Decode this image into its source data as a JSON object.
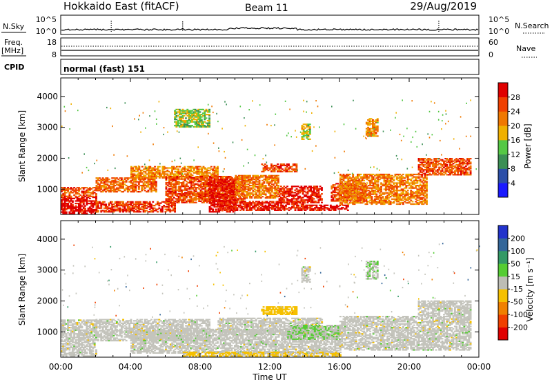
{
  "header": {
    "title": "Hokkaido East (fitACF)",
    "beam": "Beam 11",
    "date": "29/Aug/2019"
  },
  "strip": {
    "nsky_label": "N.Sky",
    "nsky_ticks": [
      "10^5",
      "10^0"
    ],
    "nsky_right_ticks": [
      "10^5",
      "10^0"
    ],
    "nsearch_label": "N.Search",
    "freq_label": "Freq.",
    "freq_unit": "[MHz]",
    "freq_ticks": [
      "18",
      "8"
    ],
    "nave_ticks": [
      "60",
      "0"
    ],
    "nave_label": "Nave",
    "cpid_label": "CPID",
    "cpid_value": "normal (fast) 151"
  },
  "colors": {
    "power_scale": [
      "#1a1aff",
      "#2c4fa8",
      "#3b8f55",
      "#55c845",
      "#f0b000",
      "#f07800",
      "#f04000",
      "#e00000"
    ],
    "velocity_scale": [
      "#2233cc",
      "#336699",
      "#339966",
      "#55cc33",
      "#bdbdb5",
      "#f5c000",
      "#f08000",
      "#f04000",
      "#e00000"
    ],
    "ground_gray": "#c4c4bc"
  },
  "chart_data": [
    {
      "type": "heatmap",
      "title": "",
      "xlabel": "",
      "ylabel": "Slant Range [km]",
      "xlim": [
        "00:00",
        "24:00"
      ],
      "ylim": [
        180,
        4600
      ],
      "y_ticks": [
        1000,
        2000,
        3000,
        4000
      ],
      "colorbar": {
        "label": "Power [dB]",
        "ticks": [
          "4",
          "8",
          "12",
          "16",
          "20",
          "24",
          "28"
        ],
        "range": [
          0,
          30
        ]
      },
      "regions": [
        {
          "t0": 0.0,
          "t1": 2.0,
          "r0": 200,
          "r1": 750,
          "value": 29
        },
        {
          "t0": 0.0,
          "t1": 2.0,
          "r0": 750,
          "r1": 1050,
          "value": 23
        },
        {
          "t0": 2.0,
          "t1": 6.5,
          "r0": 250,
          "r1": 600,
          "value": 25
        },
        {
          "t0": 2.0,
          "t1": 5.5,
          "r0": 900,
          "r1": 1350,
          "value": 22
        },
        {
          "t0": 4.0,
          "t1": 9.0,
          "r0": 1350,
          "r1": 1750,
          "value": 20
        },
        {
          "t0": 6.0,
          "t1": 10.5,
          "r0": 550,
          "r1": 1400,
          "value": 24
        },
        {
          "t0": 8.5,
          "t1": 10.0,
          "r0": 250,
          "r1": 1300,
          "value": 28
        },
        {
          "t0": 9.0,
          "t1": 14.0,
          "r0": 300,
          "r1": 600,
          "value": 27
        },
        {
          "t0": 10.0,
          "t1": 12.5,
          "r0": 700,
          "r1": 1450,
          "value": 21
        },
        {
          "t0": 11.5,
          "t1": 13.5,
          "r0": 1550,
          "r1": 1800,
          "value": 24
        },
        {
          "t0": 12.5,
          "t1": 15.0,
          "r0": 550,
          "r1": 1100,
          "value": 27
        },
        {
          "t0": 14.0,
          "t1": 16.5,
          "r0": 300,
          "r1": 500,
          "value": 28
        },
        {
          "t0": 15.5,
          "t1": 17.5,
          "r0": 600,
          "r1": 1200,
          "value": 24
        },
        {
          "t0": 16.0,
          "t1": 21.0,
          "r0": 500,
          "r1": 1500,
          "value": 21
        },
        {
          "t0": 17.5,
          "t1": 18.2,
          "r0": 2700,
          "r1": 3300,
          "value": 19
        },
        {
          "t0": 20.5,
          "t1": 23.5,
          "r0": 1450,
          "r1": 2000,
          "value": 24
        },
        {
          "t0": 13.8,
          "t1": 14.3,
          "r0": 2600,
          "r1": 3100,
          "value": 15
        },
        {
          "t0": 6.5,
          "t1": 8.5,
          "r0": 3000,
          "r1": 3600,
          "value": 14
        }
      ]
    },
    {
      "type": "heatmap",
      "title": "",
      "xlabel": "Time UT",
      "ylabel": "Slant Range [km]",
      "xlim": [
        "00:00",
        "24:00"
      ],
      "ylim": [
        180,
        4600
      ],
      "x_ticks": [
        "00:00",
        "04:00",
        "08:00",
        "12:00",
        "16:00",
        "20:00",
        "00:00"
      ],
      "y_ticks": [
        1000,
        2000,
        3000,
        4000
      ],
      "colorbar": {
        "label": "Velocity [m s⁻¹]",
        "ticks": [
          "200",
          "100",
          "50",
          "15",
          "-15",
          "-50",
          "-100",
          "-200"
        ],
        "range": [
          -250,
          250
        ]
      },
      "regions": [
        {
          "t0": 0.0,
          "t1": 2.0,
          "r0": 200,
          "r1": 1400,
          "value": 0
        },
        {
          "t0": 2.0,
          "t1": 8.5,
          "r0": 700,
          "r1": 1400,
          "value": 0
        },
        {
          "t0": 4.0,
          "t1": 16.0,
          "r0": 300,
          "r1": 1100,
          "value": 0
        },
        {
          "t0": 9.0,
          "t1": 15.0,
          "r0": 900,
          "r1": 1450,
          "value": 0
        },
        {
          "t0": 11.5,
          "t1": 13.5,
          "r0": 1550,
          "r1": 1800,
          "value": -60
        },
        {
          "t0": 13.0,
          "t1": 16.0,
          "r0": 750,
          "r1": 1200,
          "value": 30
        },
        {
          "t0": 16.0,
          "t1": 23.5,
          "r0": 400,
          "r1": 1500,
          "value": 0
        },
        {
          "t0": 20.5,
          "t1": 23.5,
          "r0": 1500,
          "r1": 2000,
          "value": 0
        },
        {
          "t0": 7.0,
          "t1": 16.0,
          "r0": 200,
          "r1": 350,
          "value": -40
        },
        {
          "t0": 17.5,
          "t1": 18.2,
          "r0": 2700,
          "r1": 3300,
          "value": 30
        },
        {
          "t0": 13.8,
          "t1": 14.3,
          "r0": 2600,
          "r1": 3100,
          "value": 0
        }
      ]
    }
  ]
}
